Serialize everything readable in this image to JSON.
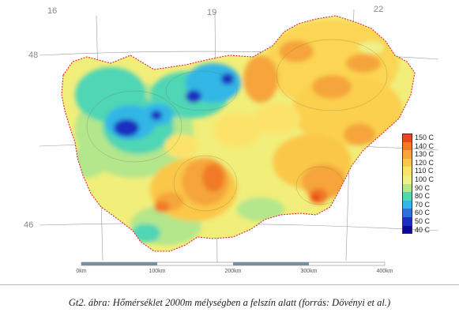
{
  "map": {
    "coordinates": {
      "lon_16": "16",
      "lon_19": "19",
      "lon_22": "22",
      "lat_48": "48",
      "lat_46": "46"
    },
    "legend": [
      {
        "label": "150 C",
        "color": "#e8471e"
      },
      {
        "label": "140 C",
        "color": "#f07a26"
      },
      {
        "label": "130 C",
        "color": "#f5a53a"
      },
      {
        "label": "120 C",
        "color": "#fac74a"
      },
      {
        "label": "110 C",
        "color": "#fbe36a"
      },
      {
        "label": "100 C",
        "color": "#eef08a"
      },
      {
        "label": "90 C",
        "color": "#b4e68c"
      },
      {
        "label": "80 C",
        "color": "#4fd6b4"
      },
      {
        "label": "70 C",
        "color": "#33b6e6"
      },
      {
        "label": "60 C",
        "color": "#2e6fd8"
      },
      {
        "label": "50 C",
        "color": "#1a2fbf"
      },
      {
        "label": "40 C",
        "color": "#0a0a9a"
      }
    ],
    "scale_bar": [
      "0km",
      "100km",
      "200km",
      "300km",
      "400km"
    ],
    "colors": {
      "border": "#e0243a",
      "grid": "#9a9a9a"
    }
  },
  "caption": "Gt2. ábra: Hőmérséklet 2000m mélységben a felszín alatt (forrás: Dövényi et al.)"
}
